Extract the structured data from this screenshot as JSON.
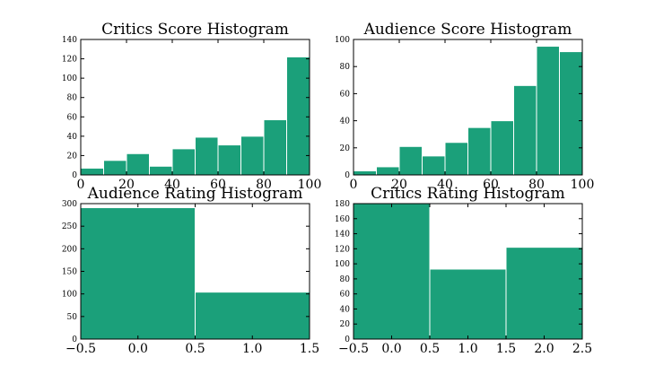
{
  "colors": {
    "bar": "#1ba07a",
    "bar_edge": "#ffffff",
    "axis": "#000000",
    "background": "#ffffff"
  },
  "chart_data": [
    {
      "type": "bar",
      "title": "Critics Score Histogram",
      "xlabel": "",
      "ylabel": "",
      "bin_edges": [
        0,
        10,
        20,
        30,
        40,
        50,
        60,
        70,
        80,
        90,
        100
      ],
      "values": [
        7,
        15,
        22,
        9,
        27,
        39,
        31,
        40,
        57,
        122
      ],
      "xlim": [
        0,
        100
      ],
      "ylim": [
        0,
        140
      ],
      "xticks": [
        0,
        20,
        40,
        60,
        80,
        100
      ],
      "yticks": [
        0,
        20,
        40,
        60,
        80,
        100,
        120,
        140
      ],
      "grid": false
    },
    {
      "type": "bar",
      "title": "Audience Score Histogram",
      "xlabel": "",
      "ylabel": "",
      "bin_edges": [
        0,
        10,
        20,
        30,
        40,
        50,
        60,
        70,
        80,
        90,
        100
      ],
      "values": [
        3,
        6,
        21,
        14,
        24,
        35,
        40,
        66,
        95,
        91
      ],
      "xlim": [
        0,
        100
      ],
      "ylim": [
        0,
        100
      ],
      "xticks": [
        0,
        20,
        40,
        60,
        80,
        100
      ],
      "yticks": [
        0,
        20,
        40,
        60,
        80,
        100
      ],
      "grid": false
    },
    {
      "type": "bar",
      "title": "Audience Rating Histogram",
      "xlabel": "",
      "ylabel": "",
      "bin_edges": [
        -0.5,
        0.5,
        1.5
      ],
      "values": [
        291,
        104
      ],
      "xlim": [
        -0.5,
        1.5
      ],
      "ylim": [
        0,
        300
      ],
      "xticks": [
        "−0.5",
        "0.0",
        "0.5",
        "1.0",
        "1.5"
      ],
      "yticks": [
        0,
        50,
        100,
        150,
        200,
        250,
        300
      ],
      "grid": false
    },
    {
      "type": "bar",
      "title": "Critics Rating Histogram",
      "xlabel": "",
      "ylabel": "",
      "bin_edges": [
        -0.5,
        0.5,
        1.5,
        2.5
      ],
      "values": [
        180,
        93,
        122
      ],
      "xlim": [
        -0.5,
        2.5
      ],
      "ylim": [
        0,
        180
      ],
      "xticks": [
        "−0.5",
        "0.0",
        "0.5",
        "1.0",
        "1.5",
        "2.0",
        "2.5"
      ],
      "yticks": [
        0,
        20,
        40,
        60,
        80,
        100,
        120,
        140,
        160,
        180
      ],
      "grid": false
    }
  ]
}
